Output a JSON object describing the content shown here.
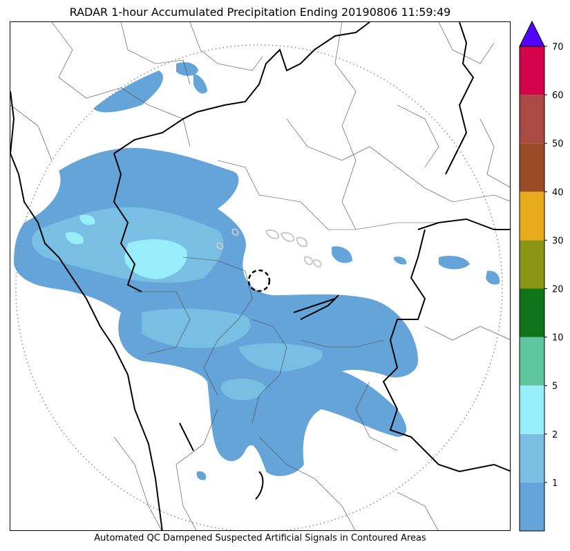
{
  "title": "RADAR 1-hour Accumulated Precipitation Ending 20190806 11:59:49",
  "caption": "Automated QC Dampened Suspected Artificial Signals in Contoured Areas",
  "colorbar": {
    "ticks": [
      "1",
      "2",
      "5",
      "10",
      "20",
      "30",
      "40",
      "50",
      "60",
      "70"
    ],
    "colors": [
      "#65a4d8",
      "#79bfe4",
      "#97edf9",
      "#5fc59e",
      "#0f7419",
      "#8a9415",
      "#e8ab1c",
      "#9a4c27",
      "#a94a45",
      "#d4024a"
    ],
    "extend_color": "#5200ff"
  },
  "map": {
    "rain_colors": {
      "light": "#65a4d8",
      "medium": "#79bfe4",
      "heavy": "#97edf9",
      "qc_contour": "#c8c8c8"
    },
    "radar_range_ring": "dotted",
    "radar_site_marker": "dashed-circle"
  }
}
